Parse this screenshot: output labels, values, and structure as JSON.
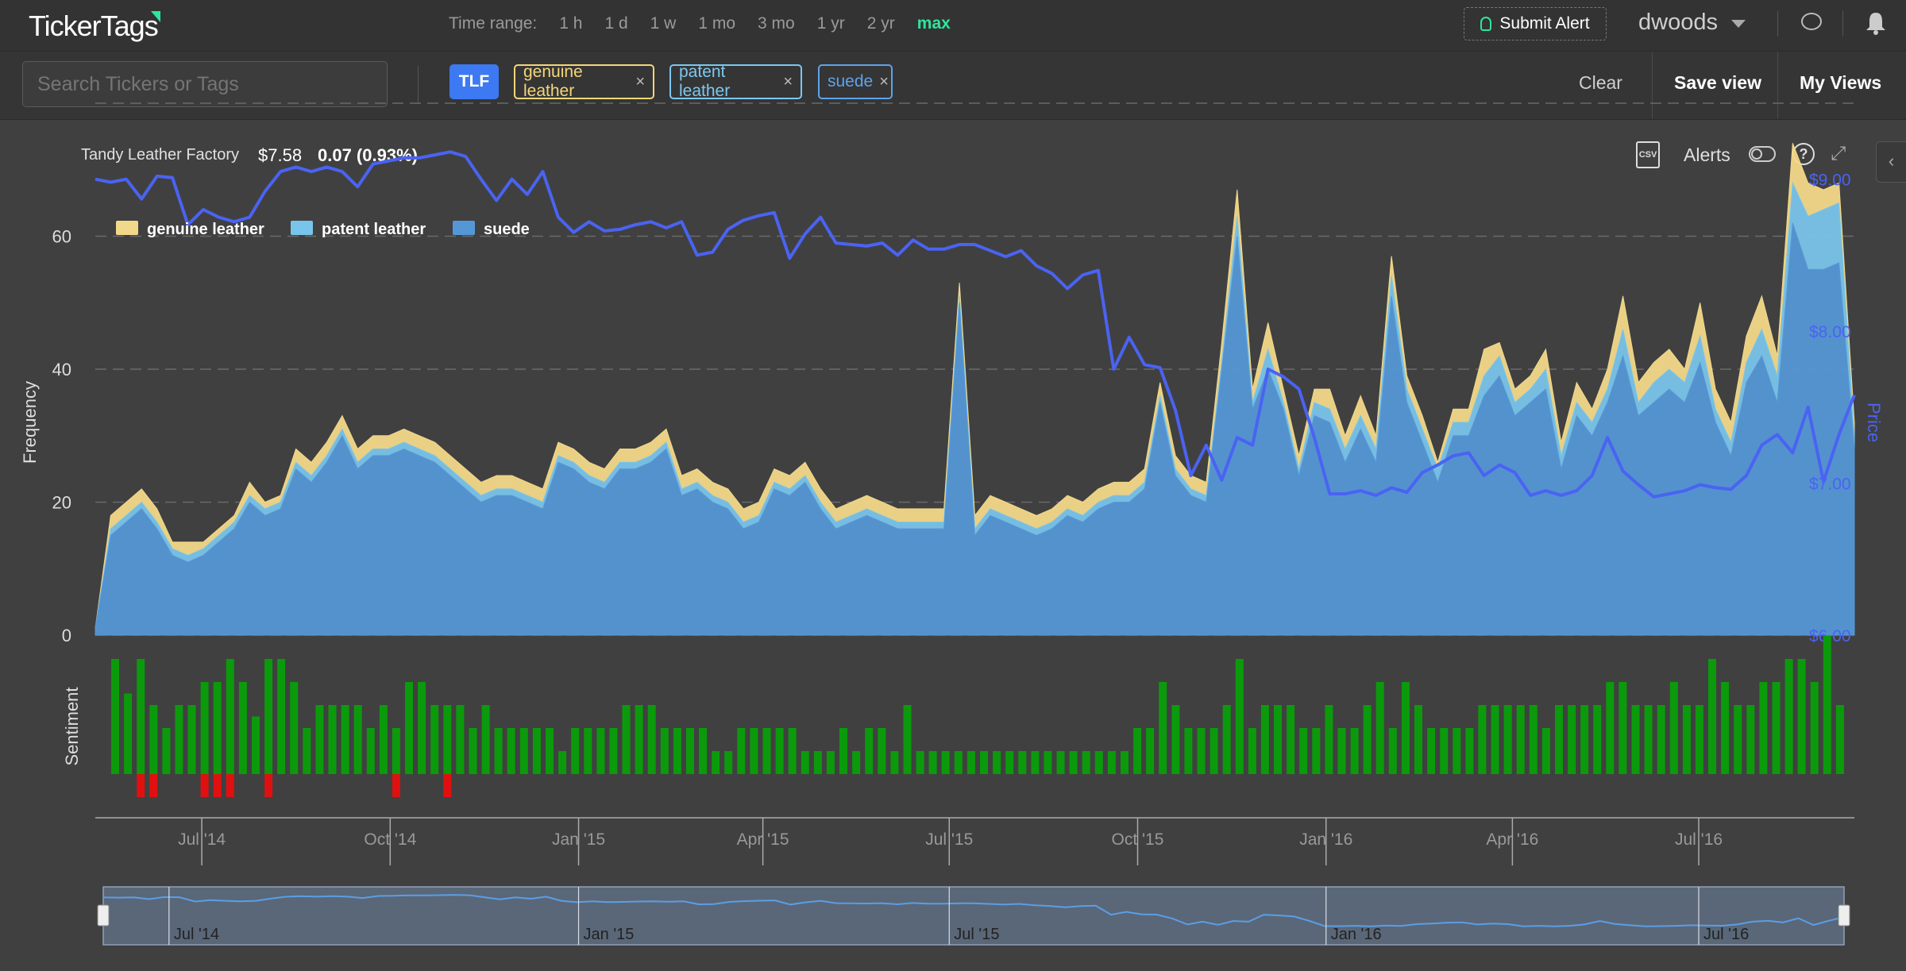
{
  "app": {
    "logo": "TickerTags"
  },
  "header": {
    "time_range_label": "Time range:",
    "time_ranges": [
      "1 h",
      "1 d",
      "1 w",
      "1 mo",
      "3 mo",
      "1 yr",
      "2 yr",
      "max"
    ],
    "active_range": "max",
    "submit_alert": "Submit Alert",
    "username": "dwoods"
  },
  "toolbar": {
    "search_placeholder": "Search Tickers or Tags",
    "ticker_tag": "TLF",
    "tags": [
      {
        "label": "genuine leather",
        "color": "#f4d67a"
      },
      {
        "label": "patent leather",
        "color": "#7cc8f0"
      },
      {
        "label": "suede",
        "color": "#5ea2ea"
      }
    ],
    "remove_glyph": "×",
    "clear": "Clear",
    "save_view": "Save view",
    "my_views": "My Views"
  },
  "stock": {
    "company": "Tandy Leather Factory",
    "price": "$7.58",
    "change": "0.07 (0.93%)"
  },
  "controls": {
    "csv": "CSV",
    "alerts": "Alerts",
    "help": "?"
  },
  "colors": {
    "genuine_leather": "#f2d889",
    "patent_leather": "#79c4ea",
    "suede": "#5597d6",
    "price_line": "#4a63f2",
    "sentiment_pos": "#0b9a0b",
    "sentiment_neg": "#e01010",
    "accent": "#2ee59d"
  },
  "chart_data": [
    {
      "type": "area",
      "ylabel": "Frequency",
      "y2label": "Price",
      "ylim": [
        0,
        80
      ],
      "y_ticks": [
        0,
        20,
        40,
        60
      ],
      "y2lim": [
        6.0,
        9.5
      ],
      "y2_ticks": [
        "$6.00",
        "$7.00",
        "$8.00",
        "$9.00"
      ],
      "y2_tick_values": [
        6.0,
        7.0,
        8.0,
        9.0
      ],
      "grid": true,
      "legend_position": "top-left",
      "x_range": [
        "2014-05-10",
        "2016-09-15"
      ],
      "x_ticks": [
        "Jul '14",
        "Oct '14",
        "Jan '15",
        "Apr '15",
        "Jul '15",
        "Oct '15",
        "Jan '16",
        "Apr '16",
        "Jul '16"
      ],
      "x_tick_dates": [
        "2014-07-01",
        "2014-10-01",
        "2015-01-01",
        "2015-04-01",
        "2015-07-01",
        "2015-10-01",
        "2016-01-01",
        "2016-04-01",
        "2016-07-01"
      ],
      "stacked": true,
      "series": [
        {
          "name": "suede",
          "values": [
            1,
            15,
            17,
            19,
            16,
            12,
            11,
            12,
            14,
            16,
            20,
            18,
            19,
            25,
            23,
            26,
            30,
            25,
            27,
            27,
            28,
            27,
            26,
            24,
            22,
            20,
            21,
            21,
            20,
            19,
            26,
            25,
            23,
            22,
            25,
            25,
            26,
            28,
            21,
            22,
            20,
            19,
            16,
            17,
            22,
            21,
            23,
            19,
            16,
            17,
            18,
            17,
            16,
            16,
            16,
            16,
            50,
            15,
            18,
            17,
            16,
            15,
            16,
            18,
            17,
            19,
            20,
            20,
            22,
            35,
            24,
            21,
            20,
            40,
            60,
            34,
            40,
            34,
            24,
            33,
            32,
            26,
            31,
            26,
            51,
            35,
            29,
            23,
            30,
            30,
            36,
            39,
            33,
            35,
            37,
            25,
            33,
            30,
            35,
            42,
            33,
            35,
            37,
            35,
            41,
            32,
            27,
            38,
            42,
            35,
            62,
            55,
            55,
            56,
            28
          ]
        },
        {
          "name": "patent leather",
          "values": [
            0,
            1,
            1,
            1,
            1,
            1,
            1,
            1,
            1,
            1,
            1,
            1,
            1,
            1,
            1,
            1,
            1,
            1,
            1,
            1,
            1,
            1,
            1,
            1,
            1,
            1,
            1,
            1,
            1,
            1,
            1,
            1,
            1,
            1,
            1,
            1,
            1,
            1,
            1,
            1,
            1,
            1,
            1,
            1,
            1,
            1,
            1,
            1,
            1,
            1,
            1,
            1,
            1,
            1,
            1,
            1,
            1,
            1,
            1,
            1,
            1,
            1,
            1,
            1,
            1,
            1,
            1,
            1,
            1,
            1,
            1,
            1,
            1,
            1,
            3,
            1,
            3,
            1,
            1,
            2,
            2,
            2,
            2,
            2,
            3,
            2,
            2,
            2,
            2,
            2,
            3,
            3,
            2,
            2,
            3,
            2,
            2,
            2,
            2,
            4,
            2,
            3,
            3,
            3,
            4,
            2,
            2,
            3,
            4,
            4,
            6,
            8,
            9,
            9,
            2
          ]
        },
        {
          "name": "genuine leather",
          "values": [
            0,
            2,
            2,
            2,
            2,
            1,
            2,
            1,
            1,
            1,
            2,
            1,
            1,
            2,
            2,
            2,
            2,
            2,
            2,
            2,
            2,
            2,
            2,
            2,
            2,
            2,
            2,
            2,
            2,
            2,
            2,
            2,
            2,
            2,
            2,
            2,
            2,
            2,
            2,
            2,
            2,
            2,
            2,
            2,
            2,
            2,
            2,
            2,
            2,
            2,
            2,
            2,
            2,
            2,
            2,
            2,
            2,
            2,
            2,
            2,
            2,
            2,
            2,
            2,
            2,
            2,
            2,
            2,
            2,
            2,
            2,
            2,
            2,
            3,
            4,
            2,
            4,
            2,
            2,
            2,
            3,
            2,
            3,
            2,
            3,
            2,
            2,
            1,
            2,
            2,
            4,
            2,
            2,
            2,
            3,
            2,
            3,
            2,
            3,
            5,
            3,
            3,
            3,
            2,
            5,
            3,
            3,
            4,
            5,
            3,
            6,
            5,
            3,
            3,
            2
          ]
        },
        {
          "name": "TLF price",
          "axis": "y2",
          "values": [
            9.0,
            8.98,
            9.0,
            8.87,
            9.02,
            9.01,
            8.7,
            8.8,
            8.75,
            8.72,
            8.75,
            8.92,
            9.05,
            9.08,
            9.05,
            9.08,
            9.05,
            8.95,
            9.1,
            9.12,
            9.14,
            9.14,
            9.16,
            9.18,
            9.15,
            9.0,
            8.86,
            9.0,
            8.9,
            9.05,
            8.75,
            8.65,
            8.72,
            8.66,
            8.67,
            8.7,
            8.72,
            8.68,
            8.72,
            8.5,
            8.52,
            8.67,
            8.73,
            8.76,
            8.78,
            8.48,
            8.64,
            8.75,
            8.58,
            8.57,
            8.56,
            8.58,
            8.5,
            8.6,
            8.54,
            8.54,
            8.57,
            8.57,
            8.53,
            8.49,
            8.53,
            8.43,
            8.38,
            8.28,
            8.37,
            8.4,
            7.75,
            7.96,
            7.78,
            7.76,
            7.48,
            7.05,
            7.25,
            7.02,
            7.3,
            7.25,
            7.75,
            7.7,
            7.62,
            7.3,
            6.93,
            6.93,
            6.95,
            6.92,
            6.97,
            6.94,
            7.07,
            7.12,
            7.18,
            7.2,
            7.05,
            7.12,
            7.07,
            6.92,
            6.95,
            6.92,
            6.95,
            7.05,
            7.3,
            7.08,
            6.99,
            6.91,
            6.93,
            6.95,
            6.99,
            6.97,
            6.96,
            7.05,
            7.25,
            7.32,
            7.2,
            7.5,
            7.01,
            7.32,
            7.58
          ]
        }
      ]
    },
    {
      "type": "bar",
      "ylabel": "Sentiment",
      "ylim": [
        -1,
        2
      ],
      "series": [
        {
          "name": "positive",
          "values": [
            1,
            0.7,
            1,
            0.6,
            0.4,
            0.6,
            0.6,
            0.8,
            0.8,
            1,
            0.8,
            0.5,
            1,
            1,
            0.8,
            0.4,
            0.6,
            0.6,
            0.6,
            0.6,
            0.4,
            0.6,
            0.4,
            0.8,
            0.8,
            0.6,
            0.6,
            0.6,
            0.4,
            0.6,
            0.4,
            0.4,
            0.4,
            0.4,
            0.4,
            0.2,
            0.4,
            0.4,
            0.4,
            0.4,
            0.6,
            0.6,
            0.6,
            0.4,
            0.4,
            0.4,
            0.4,
            0.2,
            0.2,
            0.4,
            0.4,
            0.4,
            0.4,
            0.4,
            0.2,
            0.2,
            0.2,
            0.4,
            0.2,
            0.4,
            0.4,
            0.2,
            0.6,
            0.2,
            0.2,
            0.2,
            0.2,
            0.2,
            0.2,
            0.2,
            0.2,
            0.2,
            0.2,
            0.2,
            0.2,
            0.2,
            0.2,
            0.2,
            0.2,
            0.2,
            0.4,
            0.4,
            0.8,
            0.6,
            0.4,
            0.4,
            0.4,
            0.6,
            1,
            0.4,
            0.6,
            0.6,
            0.6,
            0.4,
            0.4,
            0.6,
            0.4,
            0.4,
            0.6,
            0.8,
            0.4,
            0.8,
            0.6,
            0.4,
            0.4,
            0.4,
            0.4,
            0.6,
            0.6,
            0.6,
            0.6,
            0.6,
            0.4,
            0.6,
            0.6,
            0.6,
            0.6,
            0.8,
            0.8,
            0.6,
            0.6,
            0.6,
            0.8,
            0.6,
            0.6,
            1,
            0.8,
            0.6,
            0.6,
            0.8,
            0.8,
            1,
            1,
            0.8,
            1.2,
            0.6
          ]
        },
        {
          "name": "negative",
          "values": [
            0,
            0,
            -0.2,
            -0.2,
            0,
            0,
            0,
            -0.2,
            -0.2,
            -0.2,
            0,
            0,
            -0.2,
            0,
            0,
            0,
            0,
            0,
            0,
            0,
            0,
            0,
            -0.2,
            0,
            0,
            0,
            -0.2,
            0,
            0,
            0,
            0,
            0,
            0,
            0,
            0,
            0,
            0,
            0,
            0,
            0,
            0,
            0,
            0,
            0,
            0,
            0,
            0,
            0,
            0,
            0,
            0,
            0,
            0,
            0,
            0,
            0,
            0,
            0,
            0,
            0,
            0,
            0,
            0,
            0,
            0,
            0,
            0,
            0,
            0,
            0,
            0,
            0,
            0,
            0,
            0,
            0,
            0,
            0,
            0,
            0,
            0,
            0,
            0,
            0,
            0,
            0,
            0,
            0,
            0,
            0,
            0,
            0,
            0,
            0,
            0,
            0,
            0,
            0,
            0,
            0,
            0,
            0,
            0,
            0,
            0,
            0,
            0,
            0,
            0,
            0,
            0,
            0,
            0,
            0,
            0,
            0,
            0,
            0,
            0,
            0,
            0,
            0,
            0,
            0,
            0,
            0,
            0,
            0,
            0,
            0,
            0,
            0,
            0,
            0,
            0,
            0,
            0
          ]
        }
      ]
    },
    {
      "type": "line",
      "role": "navigator",
      "x_ticks": [
        "Jul '14",
        "Jan '15",
        "Jul '15",
        "Jan '16",
        "Jul '16"
      ]
    }
  ]
}
